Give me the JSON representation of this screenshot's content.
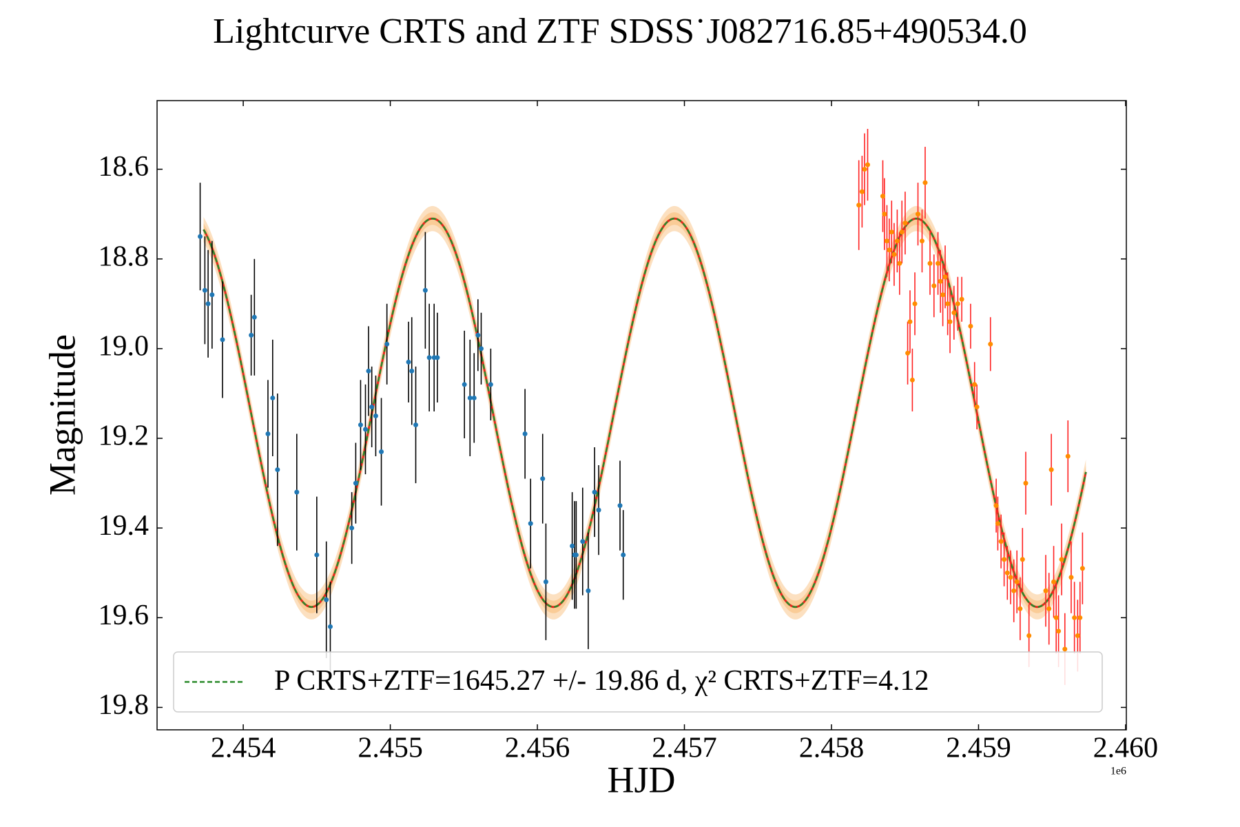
{
  "chart_data": {
    "type": "errorbar",
    "title": "Lightcurve CRTS and ZTF SDSS˙J082716.85+490534.0",
    "x_label": "HJD",
    "y_label": "Magnitude",
    "x_offset_label": "1e6",
    "xlim": [
      2453414,
      2460005
    ],
    "xticks": [
      {
        "value": 2454000,
        "label": "2.454"
      },
      {
        "value": 2455000,
        "label": "2.455"
      },
      {
        "value": 2456000,
        "label": "2.456"
      },
      {
        "value": 2457000,
        "label": "2.457"
      },
      {
        "value": 2458000,
        "label": "2.458"
      },
      {
        "value": 2459000,
        "label": "2.459"
      },
      {
        "value": 2460000,
        "label": "2.460"
      }
    ],
    "ylim": [
      18.447,
      19.85
    ],
    "y_inverted": true,
    "yticks": [
      18.6,
      18.8,
      {
        "value": 19,
        "label": "19.0"
      },
      19.2,
      19.4,
      19.6,
      19.8
    ],
    "legend_position": "lower left",
    "fit": {
      "name": "P CRTS+ZTF=1645.27 +/- 19.86 d, χ² CRTS+ZTF=4.12",
      "color": "#2a8a2a",
      "under_color": "#e8281e",
      "band_color": "#f5a54a",
      "mean": 19.143,
      "amplitude": 0.433,
      "period_days": 1645.27,
      "peak_hjd": 2456932,
      "hjd_range": [
        2453730,
        2459730
      ],
      "band_halfwidths": [
        0.028,
        0.014
      ]
    },
    "series": [
      {
        "color": "#1f77b4",
        "error_color": "#000000",
        "x": [
          2453707,
          2453739,
          2453761,
          2453788,
          2453859,
          2454054,
          2454076,
          2454168,
          2454200,
          2454233,
          2454364,
          2454500,
          2454565,
          2454592,
          2454738,
          2454765,
          2454798,
          2454831,
          2454852,
          2454874,
          2454901,
          2454939,
          2454977,
          2455124,
          2455146,
          2455173,
          2455238,
          2455265,
          2455298,
          2455320,
          2455504,
          2455542,
          2455570,
          2455596,
          2455618,
          2455683,
          2455916,
          2455954,
          2456036,
          2456058,
          2456237,
          2456253,
          2456264,
          2456308,
          2456346,
          2456389,
          2456417,
          2456562,
          2456584
        ],
        "values": [
          18.75,
          18.87,
          18.9,
          18.88,
          18.98,
          18.97,
          18.93,
          19.19,
          19.11,
          19.27,
          19.32,
          19.46,
          19.56,
          19.62,
          19.4,
          19.3,
          19.17,
          19.18,
          19.05,
          19.13,
          19.15,
          19.23,
          18.99,
          19.03,
          19.05,
          19.17,
          18.87,
          19.02,
          19.02,
          19.02,
          19.08,
          19.11,
          19.11,
          18.97,
          19.0,
          19.08,
          19.19,
          19.39,
          19.29,
          19.52,
          19.44,
          19.46,
          19.46,
          19.43,
          19.54,
          19.32,
          19.36,
          19.35,
          19.46
        ],
        "errors": [
          0.12,
          0.12,
          0.12,
          0.12,
          0.13,
          0.09,
          0.13,
          0.12,
          0.13,
          0.17,
          0.13,
          0.13,
          0.13,
          0.1,
          0.08,
          0.09,
          0.1,
          0.1,
          0.1,
          0.09,
          0.09,
          0.12,
          0.09,
          0.09,
          0.12,
          0.13,
          0.13,
          0.12,
          0.12,
          0.1,
          0.12,
          0.13,
          0.1,
          0.08,
          0.08,
          0.08,
          0.1,
          0.1,
          0.1,
          0.13,
          0.12,
          0.12,
          0.12,
          0.12,
          0.13,
          0.1,
          0.1,
          0.1,
          0.1
        ]
      },
      {
        "color": "#ff8c00",
        "error_color": "#ff2020",
        "x": [
          2458186,
          2458208,
          2458225,
          2458246,
          2458349,
          2458360,
          2458377,
          2458393,
          2458409,
          2458426,
          2458447,
          2458463,
          2458479,
          2458501,
          2458518,
          2458534,
          2458550,
          2458567,
          2458588,
          2458616,
          2458637,
          2458670,
          2458697,
          2458724,
          2458741,
          2458757,
          2458773,
          2458790,
          2458806,
          2458833,
          2458859,
          2458886,
          2458946,
          2458973,
          2458989,
          2459081,
          2459120,
          2459131,
          2459153,
          2459174,
          2459196,
          2459218,
          2459240,
          2459261,
          2459283,
          2459299,
          2459321,
          2459343,
          2459457,
          2459479,
          2459495,
          2459511,
          2459528,
          2459544,
          2459565,
          2459587,
          2459608,
          2459630,
          2459652,
          2459674,
          2459690,
          2459707
        ],
        "values": [
          18.68,
          18.65,
          18.6,
          18.59,
          18.66,
          18.7,
          18.76,
          18.78,
          18.74,
          18.79,
          18.76,
          18.81,
          18.74,
          18.72,
          19.01,
          18.94,
          19.07,
          18.9,
          18.7,
          18.76,
          18.63,
          18.81,
          18.86,
          18.81,
          18.85,
          18.88,
          18.84,
          18.9,
          18.94,
          18.92,
          18.9,
          18.89,
          18.95,
          19.08,
          19.13,
          18.99,
          19.35,
          19.39,
          19.43,
          19.47,
          19.5,
          19.51,
          19.54,
          19.52,
          19.58,
          19.47,
          19.3,
          19.64,
          19.54,
          19.58,
          19.27,
          19.52,
          19.6,
          19.63,
          19.47,
          19.67,
          19.24,
          19.51,
          19.6,
          19.64,
          19.6,
          19.49
        ],
        "errors": [
          0.1,
          0.08,
          0.08,
          0.08,
          0.08,
          0.08,
          0.08,
          0.07,
          0.07,
          0.07,
          0.07,
          0.07,
          0.07,
          0.07,
          0.07,
          0.07,
          0.07,
          0.07,
          0.07,
          0.07,
          0.08,
          0.07,
          0.07,
          0.07,
          0.07,
          0.07,
          0.07,
          0.07,
          0.07,
          0.06,
          0.06,
          0.05,
          0.05,
          0.05,
          0.05,
          0.06,
          0.06,
          0.06,
          0.06,
          0.06,
          0.06,
          0.06,
          0.07,
          0.07,
          0.07,
          0.07,
          0.07,
          0.07,
          0.08,
          0.08,
          0.08,
          0.08,
          0.08,
          0.08,
          0.08,
          0.08,
          0.08,
          0.08,
          0.08,
          0.08,
          0.08,
          0.08
        ]
      }
    ]
  }
}
